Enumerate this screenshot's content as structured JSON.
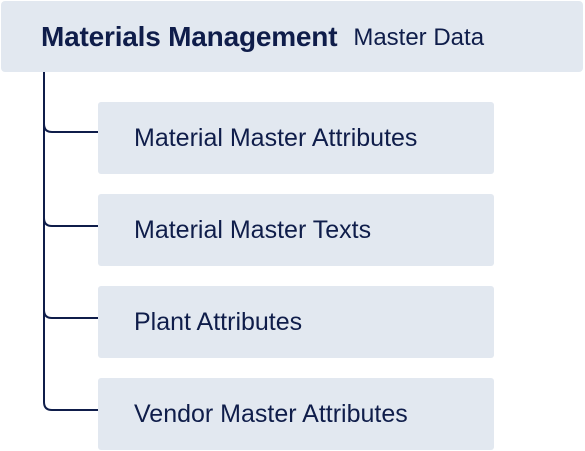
{
  "root": {
    "title": "Materials Management",
    "subtitle": "Master Data"
  },
  "children": [
    {
      "label": "Material Master Attributes"
    },
    {
      "label": "Material Master Texts"
    },
    {
      "label": "Plant Attributes"
    },
    {
      "label": "Vendor Master Attributes"
    }
  ],
  "colors": {
    "box_fill": "#e2e8f0",
    "text": "#0f1d4a",
    "connector": "#0f1d4a"
  }
}
